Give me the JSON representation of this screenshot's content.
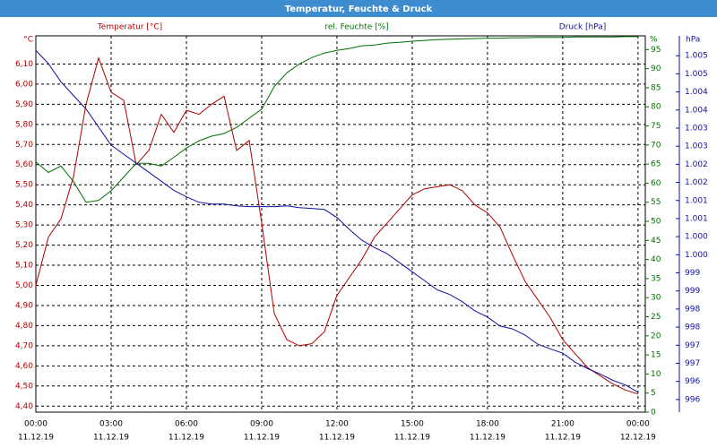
{
  "chart_data": {
    "type": "line",
    "title": "Temperatur, Feuchte & Druck",
    "ylabel": "Temperatur [°C]",
    "y2label": "rel. Feuchte [%]",
    "y3label": "Druck [hPa]",
    "yunit": "°C",
    "y2unit": "%",
    "y3unit": "hPa",
    "grid": true,
    "x": [
      0,
      0.5,
      1,
      1.5,
      2,
      2.5,
      3,
      3.5,
      4,
      4.5,
      5,
      5.5,
      6,
      6.5,
      7,
      7.5,
      8,
      8.5,
      9,
      9.5,
      10,
      10.5,
      11,
      11.5,
      12,
      12.5,
      13,
      13.5,
      14,
      14.5,
      15,
      15.5,
      16,
      16.5,
      17,
      17.5,
      18,
      18.5,
      19,
      19.5,
      20,
      20.5,
      21,
      21.5,
      22,
      22.5,
      23,
      23.5,
      24
    ],
    "xlim": [
      0,
      24.29
    ],
    "xticks": [
      {
        "value": 0,
        "label": "00:00"
      },
      {
        "value": 3,
        "label": "03:00"
      },
      {
        "value": 6,
        "label": "06:00"
      },
      {
        "value": 9,
        "label": "09:00"
      },
      {
        "value": 12,
        "label": "12:00"
      },
      {
        "value": 15,
        "label": "15:00"
      },
      {
        "value": 18,
        "label": "18:00"
      },
      {
        "value": 21,
        "label": "21:00"
      },
      {
        "value": 24,
        "label": "00:00"
      }
    ],
    "xtick_dates": [
      "11.12.19",
      "11.12.19",
      "11.12.19",
      "11.12.19",
      "11.12.19",
      "11.12.19",
      "11.12.19",
      "11.12.19",
      "12.12.19"
    ],
    "ylim": [
      4.37,
      6.24
    ],
    "yticks": [
      {
        "value": 4.4,
        "label": "4,40"
      },
      {
        "value": 4.5,
        "label": "4,50"
      },
      {
        "value": 4.6,
        "label": "4,60"
      },
      {
        "value": 4.7,
        "label": "4,70"
      },
      {
        "value": 4.8,
        "label": "4,80"
      },
      {
        "value": 4.9,
        "label": "4,90"
      },
      {
        "value": 5.0,
        "label": "5,00"
      },
      {
        "value": 5.1,
        "label": "5,10"
      },
      {
        "value": 5.2,
        "label": "5,20"
      },
      {
        "value": 5.3,
        "label": "5,30"
      },
      {
        "value": 5.4,
        "label": "5,40"
      },
      {
        "value": 5.5,
        "label": "5,50"
      },
      {
        "value": 5.6,
        "label": "5,60"
      },
      {
        "value": 5.7,
        "label": "5,70"
      },
      {
        "value": 5.8,
        "label": "5,80"
      },
      {
        "value": 5.9,
        "label": "5,90"
      },
      {
        "value": 6.0,
        "label": "6,00"
      },
      {
        "value": 6.1,
        "label": "6,10"
      }
    ],
    "y2lim": [
      0,
      98.6
    ],
    "y2ticks": [
      0,
      5,
      10,
      15,
      20,
      25,
      30,
      35,
      40,
      45,
      50,
      55,
      60,
      65,
      70,
      75,
      80,
      85,
      90,
      95
    ],
    "y3lim": [
      995.45,
      1005.85
    ],
    "y3ticks": [
      {
        "value": 995.8,
        "label": "996"
      },
      {
        "value": 996.3,
        "label": "996"
      },
      {
        "value": 996.8,
        "label": "997"
      },
      {
        "value": 997.3,
        "label": "997"
      },
      {
        "value": 997.8,
        "label": "998"
      },
      {
        "value": 998.3,
        "label": "998"
      },
      {
        "value": 998.8,
        "label": "999"
      },
      {
        "value": 999.3,
        "label": "999"
      },
      {
        "value": 999.8,
        "label": "1.000"
      },
      {
        "value": 1000.3,
        "label": "1.000"
      },
      {
        "value": 1000.8,
        "label": "1.001"
      },
      {
        "value": 1001.3,
        "label": "1.001"
      },
      {
        "value": 1001.8,
        "label": "1.002"
      },
      {
        "value": 1002.3,
        "label": "1.002"
      },
      {
        "value": 1002.8,
        "label": "1.003"
      },
      {
        "value": 1003.3,
        "label": "1.003"
      },
      {
        "value": 1003.8,
        "label": "1.004"
      },
      {
        "value": 1004.3,
        "label": "1.004"
      },
      {
        "value": 1004.8,
        "label": "1.005"
      },
      {
        "value": 1005.3,
        "label": "1.005"
      }
    ],
    "series": [
      {
        "name": "Temperatur [°C]",
        "color": "#b00000",
        "axis": "y",
        "values": [
          5.0,
          5.24,
          5.33,
          5.54,
          5.9,
          6.13,
          5.96,
          5.92,
          5.6,
          5.67,
          5.85,
          5.76,
          5.87,
          5.85,
          5.9,
          5.94,
          5.67,
          5.72,
          5.31,
          4.86,
          4.73,
          4.7,
          4.71,
          4.77,
          4.95,
          5.04,
          5.13,
          5.24,
          5.31,
          5.38,
          5.45,
          5.48,
          5.49,
          5.5,
          5.47,
          5.4,
          5.36,
          5.29,
          5.15,
          5.02,
          4.93,
          4.84,
          4.73,
          4.66,
          4.59,
          4.55,
          4.51,
          4.48,
          4.46
        ]
      },
      {
        "name": "rel. Feuchte [%]",
        "color": "#007000",
        "axis": "y2",
        "values": [
          65.6,
          62.8,
          64.5,
          60.4,
          55.0,
          55.5,
          58.0,
          61.6,
          65.2,
          65.2,
          64.5,
          66.8,
          69.2,
          71.1,
          72.3,
          73.0,
          74.6,
          77.0,
          79.4,
          85.3,
          88.9,
          91.2,
          92.9,
          94.1,
          94.8,
          95.3,
          96.0,
          96.2,
          96.7,
          96.9,
          97.2,
          97.4,
          97.6,
          97.7,
          97.8,
          97.9,
          98.0,
          98.0,
          98.1,
          98.1,
          98.2,
          98.2,
          98.2,
          98.3,
          98.3,
          98.3,
          98.3,
          98.4,
          98.4
        ]
      },
      {
        "name": "Druck [hPa]",
        "color": "#1010a0",
        "axis": "y3",
        "values": [
          1005.45,
          1005.08,
          1004.58,
          1004.2,
          1003.83,
          1003.33,
          1002.83,
          1002.58,
          1002.33,
          1002.08,
          1001.83,
          1001.58,
          1001.4,
          1001.25,
          1001.2,
          1001.2,
          1001.15,
          1001.13,
          1001.13,
          1001.13,
          1001.15,
          1001.1,
          1001.08,
          1001.05,
          1000.83,
          1000.5,
          1000.2,
          1000.0,
          999.83,
          999.58,
          999.33,
          999.08,
          998.83,
          998.7,
          998.5,
          998.25,
          998.08,
          997.83,
          997.75,
          997.58,
          997.33,
          997.2,
          997.08,
          996.83,
          996.65,
          996.5,
          996.33,
          996.2,
          996.0
        ]
      }
    ]
  }
}
